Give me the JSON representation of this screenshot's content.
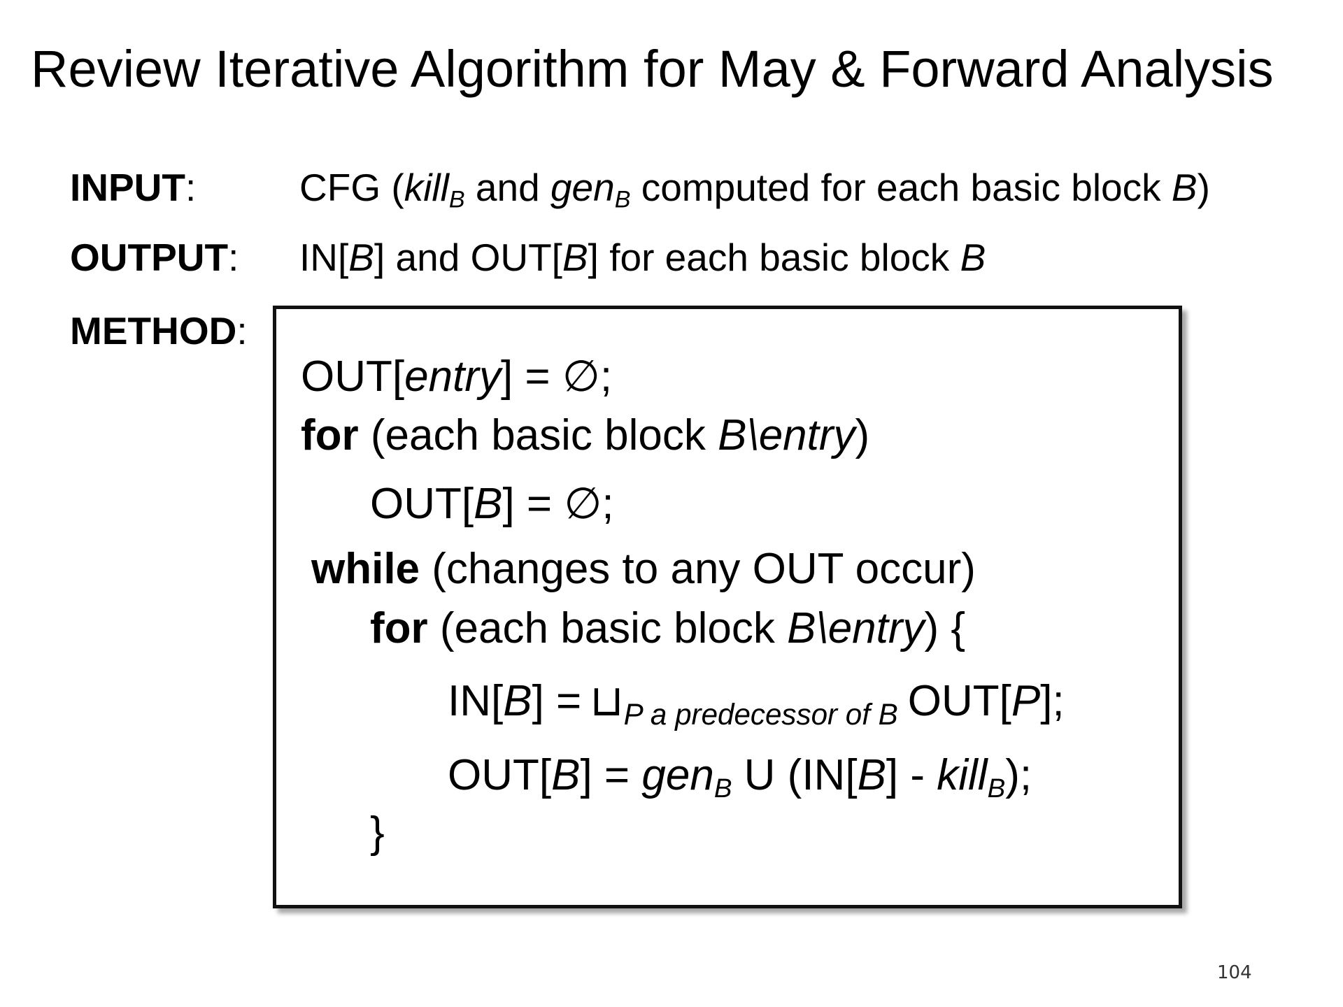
{
  "slide": {
    "title": "Review Iterative Algorithm for May & Forward Analysis",
    "page_number": "104"
  },
  "input": {
    "label": "INPUT",
    "colon": ":",
    "cfg": "CFG (",
    "kill": "kill",
    "sub_b": "B",
    "and": " and ",
    "gen": "gen",
    "rest": " computed for each basic block ",
    "b": "B",
    "close": ")"
  },
  "output": {
    "label": "OUTPUT",
    "colon": ":",
    "in_open": "IN[",
    "b1": "B",
    "and_out": "] and OUT[",
    "b2": "B",
    "rest": "] for each basic block ",
    "b3": "B"
  },
  "method": {
    "label": "METHOD",
    "colon": ":"
  },
  "code": {
    "line1": {
      "pre": "OUT[",
      "entry": "entry",
      "post": "] = ∅;"
    },
    "line2": {
      "kw": "for",
      "pre": " (each basic block ",
      "bentry": "B\\entry",
      "post": ")"
    },
    "line3": {
      "pre": "OUT[",
      "b": "B",
      "post": "] = ∅;"
    },
    "line4": {
      "kw": "while",
      "rest": " (changes to any OUT occur)"
    },
    "line5": {
      "kw": "for",
      "pre": " (each basic block ",
      "bentry": "B\\entry",
      "post": ") {"
    },
    "line6": {
      "pre": "IN[",
      "b": "B",
      "eq": "] =",
      "join": "⊔",
      "joinsub": "P a predecessor of B",
      "out_pre": "OUT[",
      "p": "P",
      "post": "];"
    },
    "line7": {
      "pre": "OUT[",
      "b": "B",
      "eq": "] = ",
      "gen": "gen",
      "sub_b": "B",
      "union": " U (IN[",
      "b2": "B",
      "minus": "] - ",
      "kill": "kill",
      "sub_b2": "B",
      "post": ");"
    },
    "line8": {
      "brace": "}"
    }
  }
}
